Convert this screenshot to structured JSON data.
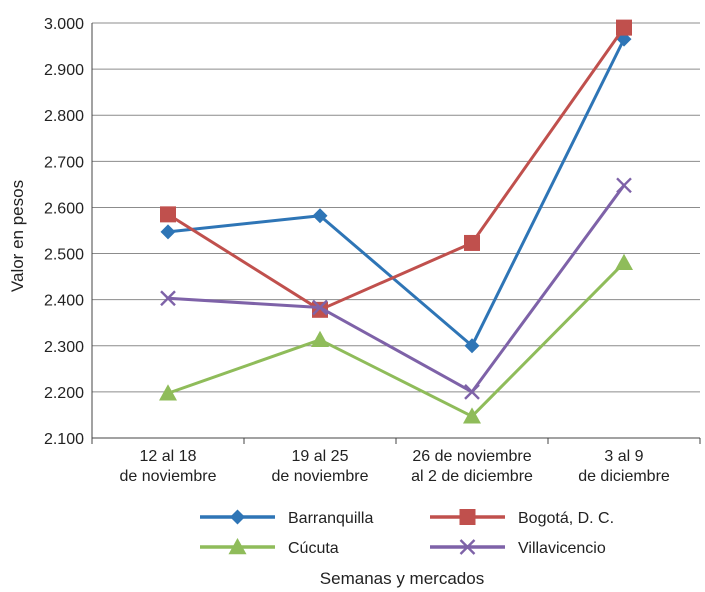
{
  "chart_data": {
    "type": "line",
    "title": "",
    "xlabel": "Semanas y mercados",
    "ylabel": "Valor en pesos",
    "categories": [
      [
        "12 al 18",
        "de noviembre"
      ],
      [
        "19 al 25",
        "de noviembre"
      ],
      [
        "26 de noviembre",
        "al 2 de diciembre"
      ],
      [
        "3 al 9",
        "de diciembre"
      ]
    ],
    "ylim": [
      2100,
      3000
    ],
    "yticks": [
      2100,
      2200,
      2300,
      2400,
      2500,
      2600,
      2700,
      2800,
      2900,
      3000
    ],
    "ytick_labels": [
      "2.100",
      "2.200",
      "2.300",
      "2.400",
      "2.500",
      "2.600",
      "2.700",
      "2.800",
      "2.900",
      "3.000"
    ],
    "grid": true,
    "legend_position": "bottom",
    "series": [
      {
        "name": "Barranquilla",
        "values": [
          2547,
          2582,
          2300,
          2965
        ],
        "color": "#2e75b6",
        "marker": "diamond-icon"
      },
      {
        "name": "Bogotá, D. C.",
        "values": [
          2585,
          2378,
          2523,
          2990
        ],
        "color": "#c0504d",
        "marker": "square-icon"
      },
      {
        "name": "Cúcuta",
        "values": [
          2197,
          2313,
          2147,
          2480
        ],
        "color": "#8fbc5a",
        "marker": "triangle-icon"
      },
      {
        "name": "Villavicencio",
        "values": [
          2403,
          2383,
          2200,
          2648
        ],
        "color": "#7e62a8",
        "marker": "x-icon"
      }
    ]
  }
}
